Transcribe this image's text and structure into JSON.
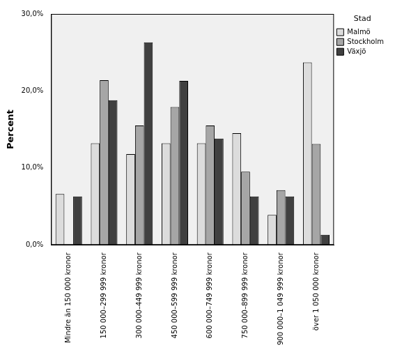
{
  "chart_data": {
    "type": "bar",
    "y_label": "Percent",
    "legend_title": "Stad",
    "categories": [
      "Mindre än 150 000 kronor",
      "150 000–299 999 kronor",
      "300 000–449 999 kronor",
      "450 000–599 999 kronor",
      "600 000–749 999 kronor",
      "750 000–899 999 kronor",
      "900 000–1 049 999 kronor",
      "över 1 050 000 kronor"
    ],
    "series": [
      {
        "name": "Malmö",
        "color": "#dcdcdc",
        "values": [
          6.6,
          13.2,
          11.8,
          13.2,
          13.2,
          14.5,
          3.9,
          23.7
        ]
      },
      {
        "name": "Stockholm",
        "color": "#a6a6a6",
        "values": [
          0,
          21.4,
          15.5,
          17.9,
          15.5,
          9.5,
          7.1,
          13.1
        ]
      },
      {
        "name": "Växjö",
        "color": "#404040",
        "values": [
          6.3,
          18.8,
          26.3,
          21.3,
          13.8,
          6.3,
          6.3,
          1.3
        ]
      }
    ],
    "ylim": [
      0,
      30
    ],
    "yticks": [
      {
        "value": 0,
        "label": "0,0%"
      },
      {
        "value": 10,
        "label": "10,0%"
      },
      {
        "value": 20,
        "label": "20,0%"
      },
      {
        "value": 30,
        "label": "30,0%"
      }
    ],
    "grid": false,
    "legend": "right"
  }
}
